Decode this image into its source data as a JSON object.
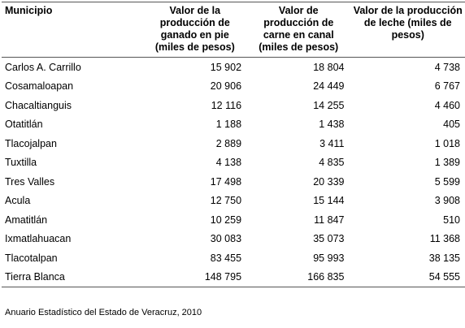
{
  "table": {
    "headers": [
      "Municipio",
      "Valor de la producción de ganado en pie (miles de pesos)",
      "Valor de producción de carne en canal (miles de pesos)",
      "Valor de la producción de leche (miles de pesos)"
    ],
    "rows": [
      [
        "Carlos A. Carrillo",
        "15 902",
        "18 804",
        "4 738"
      ],
      [
        "Cosamaloapan",
        "20 906",
        "24 449",
        "6 767"
      ],
      [
        "Chacaltianguis",
        "12 116",
        "14 255",
        "4 460"
      ],
      [
        "Otatitlán",
        "1 188",
        "1 438",
        "405"
      ],
      [
        "Tlacojalpan",
        "2 889",
        "3 411",
        "1 018"
      ],
      [
        "Tuxtilla",
        "4 138",
        "4 835",
        "1 389"
      ],
      [
        "Tres Valles",
        "17 498",
        "20 339",
        "5 599"
      ],
      [
        "Acula",
        "12 750",
        "15 144",
        "3 908"
      ],
      [
        "Amatitlán",
        "10 259",
        "11 847",
        "510"
      ],
      [
        "Ixmatlahuacan",
        "30 083",
        "35 073",
        "11 368"
      ],
      [
        "Tlacotalpan",
        "83 455",
        "95 993",
        "38 135"
      ],
      [
        "Tierra Blanca",
        "148 795",
        "166 835",
        "54 555"
      ]
    ]
  },
  "source": "Anuario Estadístico del Estado de Veracruz, 2010"
}
